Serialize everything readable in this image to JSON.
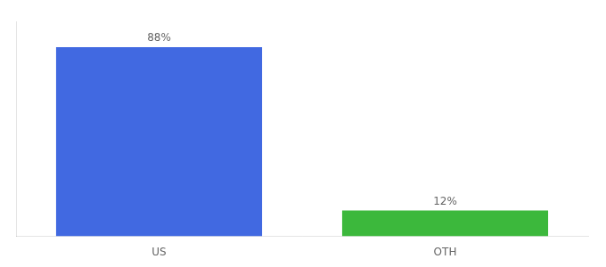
{
  "chart_data": {
    "type": "bar",
    "categories": [
      "US",
      "OTH"
    ],
    "values": [
      88,
      12
    ],
    "value_labels": [
      "88%",
      "12%"
    ],
    "colors": [
      "#4169e1",
      "#3cb83c"
    ],
    "ylim": [
      0,
      100
    ],
    "tick_labels": "x",
    "grid": false,
    "data_labels": true
  }
}
